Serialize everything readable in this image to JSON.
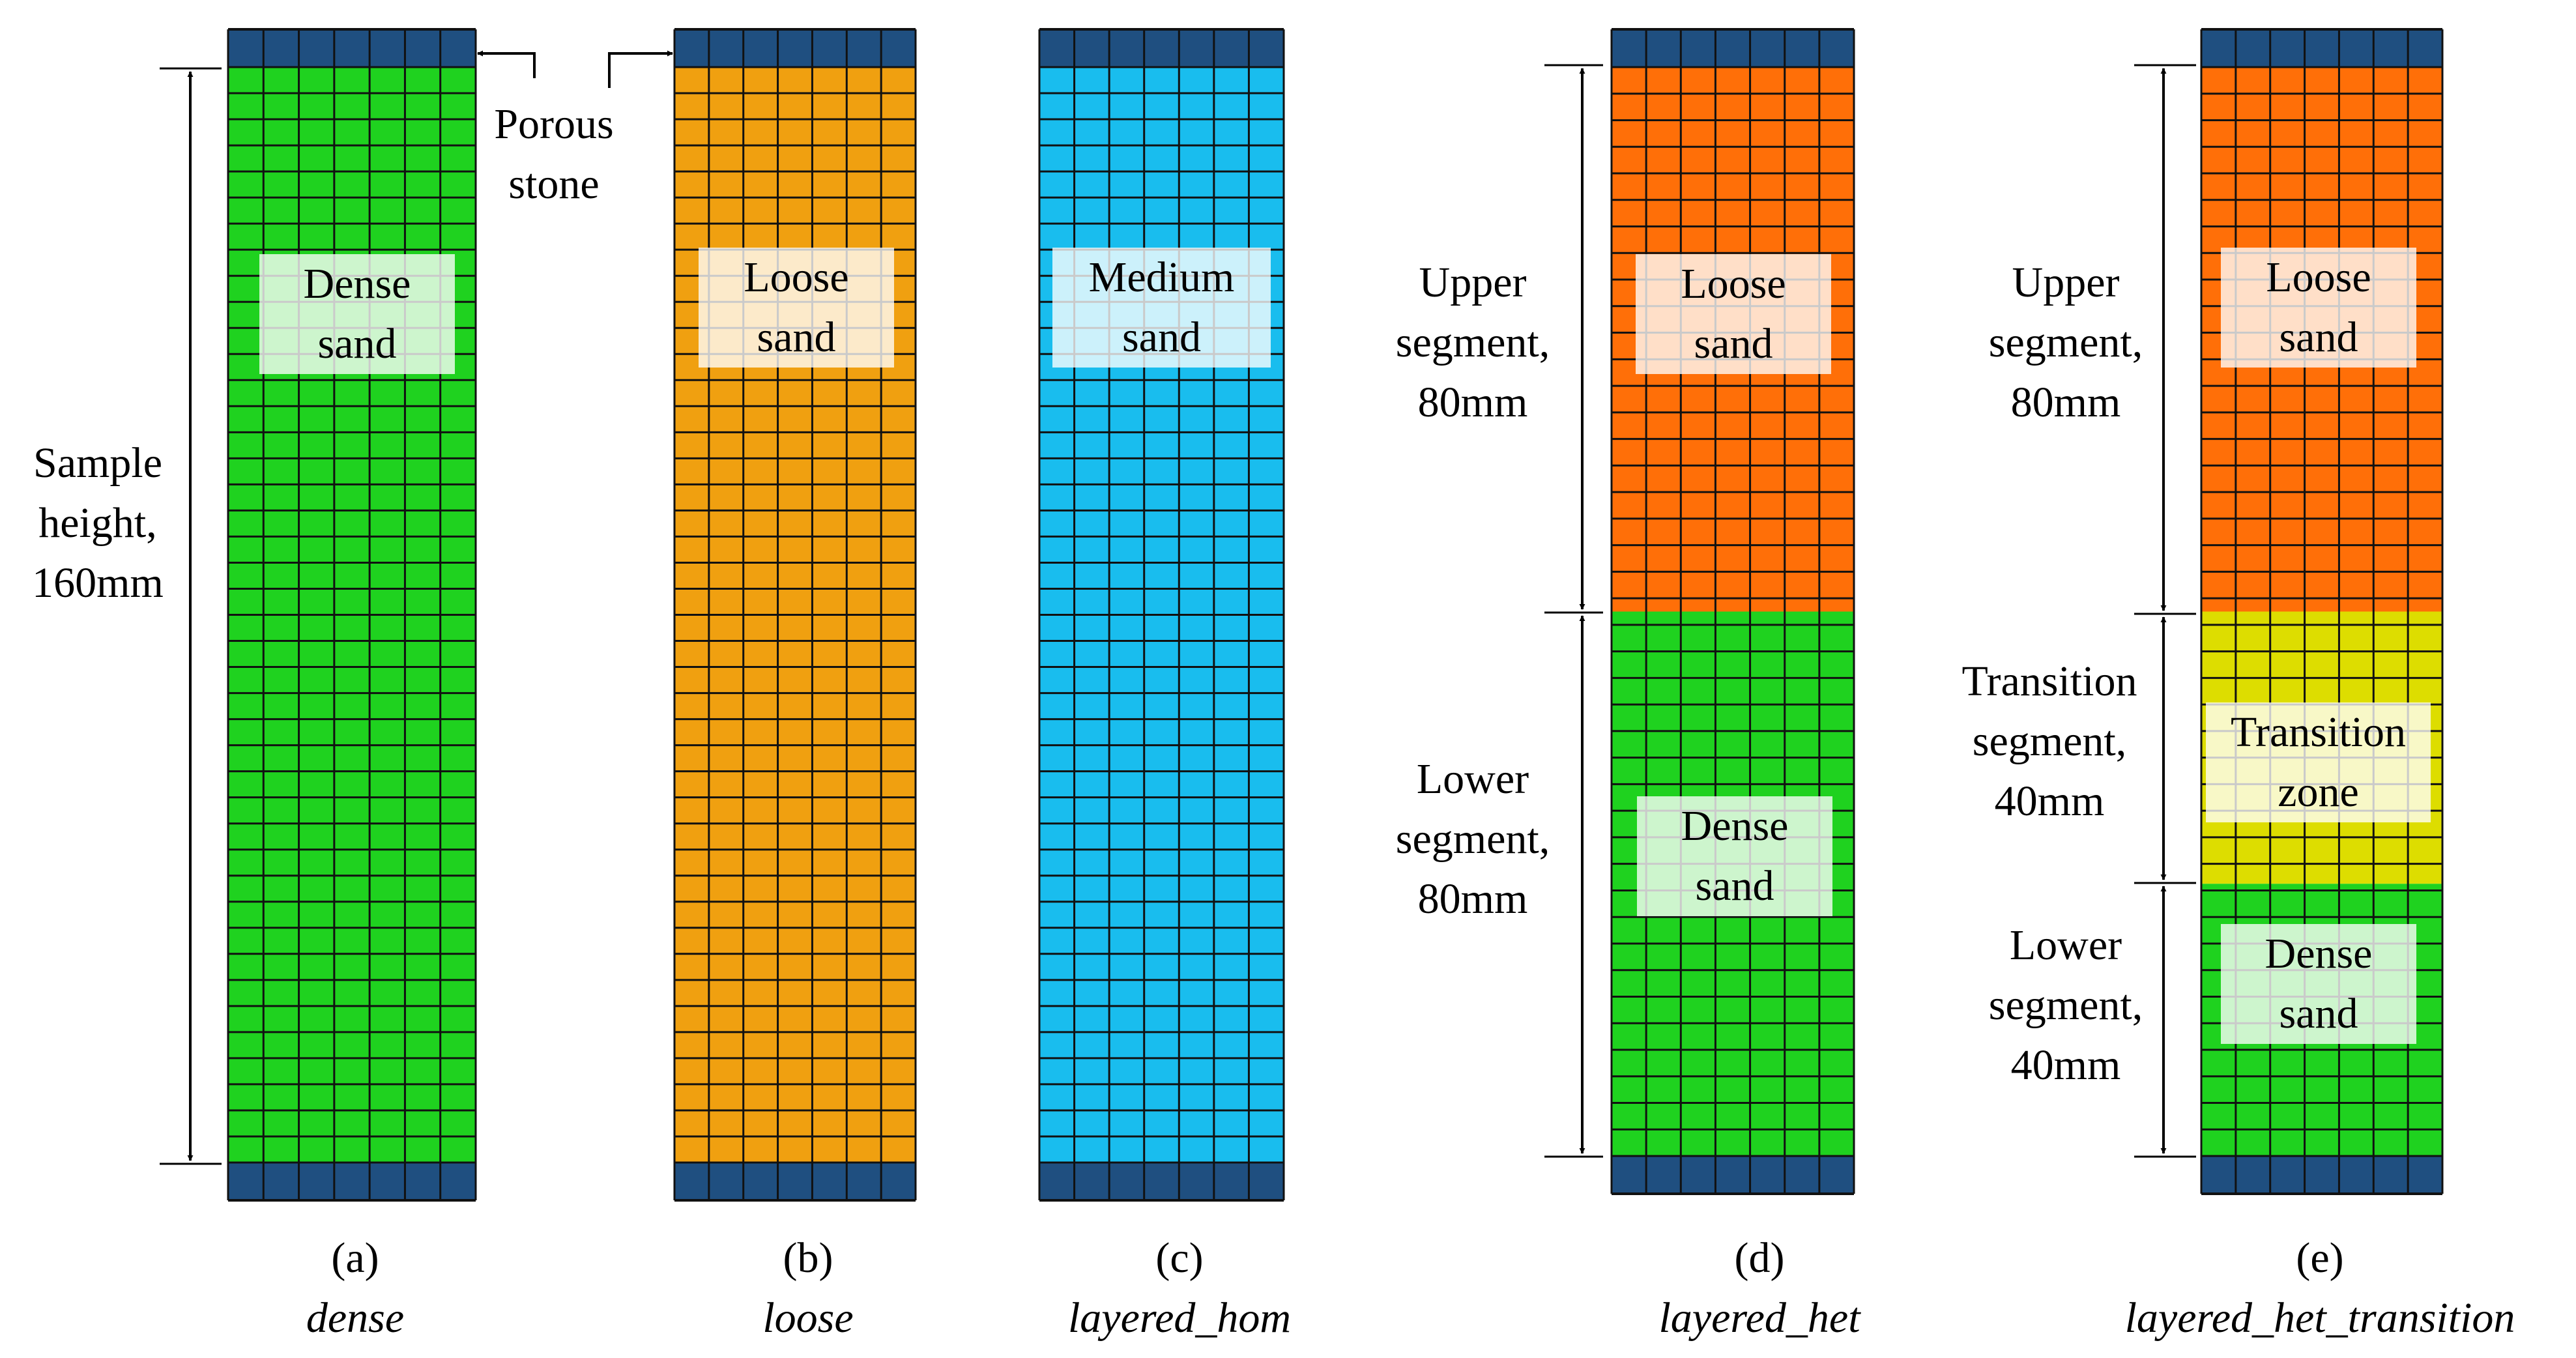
{
  "panels": [
    {
      "letter": "(a)",
      "name": "dense",
      "label": [
        "Dense",
        "sand"
      ]
    },
    {
      "letter": "(b)",
      "name": "loose",
      "label": [
        "Loose",
        "sand"
      ]
    },
    {
      "letter": "(c)",
      "name": "layered_hom",
      "label": [
        "Medium",
        "sand"
      ]
    },
    {
      "letter": "(d)",
      "name": "layered_het",
      "labels": [
        [
          "Loose",
          "sand"
        ],
        [
          "Dense",
          "sand"
        ]
      ]
    },
    {
      "letter": "(e)",
      "name": "layered_het_transition",
      "labels": [
        [
          "Loose",
          "sand"
        ],
        [
          "Transition",
          "zone"
        ],
        [
          "Dense",
          "sand"
        ]
      ]
    }
  ],
  "annotations": {
    "porous_stone": [
      "Porous",
      "stone"
    ],
    "sample_height": [
      "Sample",
      "height,",
      "160mm"
    ],
    "d_upper": [
      "Upper",
      "segment,",
      "80mm"
    ],
    "d_lower": [
      "Lower",
      "segment,",
      "80mm"
    ],
    "e_upper": [
      "Upper",
      "segment,",
      "80mm"
    ],
    "e_transition": [
      "Transition",
      "segment,",
      "40mm"
    ],
    "e_lower": [
      "Lower",
      "segment,",
      "40mm"
    ]
  },
  "colors": {
    "dense": "#1fd21f",
    "loose": "#f0a010",
    "medium": "#19bdee",
    "loose_orange": "#ff6f08",
    "transition": "#dddd00",
    "porous_stone": "#1f4f80",
    "grid_line": "#111111"
  }
}
